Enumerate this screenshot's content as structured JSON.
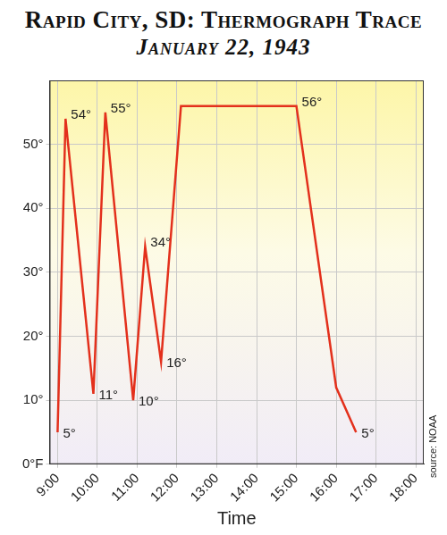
{
  "chart_data": {
    "type": "line",
    "title": "Rapid City, SD: Thermograph Trace",
    "subtitle": "January 22, 1943",
    "x_label": "Time",
    "source": "source: NOAA",
    "x": [
      9.0,
      9.2,
      9.9,
      10.2,
      10.9,
      11.2,
      11.6,
      12.1,
      15.0,
      16.0,
      16.5
    ],
    "values": [
      5,
      54,
      11,
      55,
      10,
      34,
      16,
      56,
      56,
      12,
      5
    ],
    "value_labels": [
      "5°",
      "54°",
      "11°",
      "55°",
      "10°",
      "34°",
      "16°",
      null,
      "56°",
      null,
      "5°"
    ],
    "data_labels": true,
    "color": "#e3301c",
    "xlim": [
      8.8,
      18.2
    ],
    "xticks": [
      {
        "value": 9,
        "label": "9:00"
      },
      {
        "value": 10,
        "label": "10:00"
      },
      {
        "value": 11,
        "label": "11:00"
      },
      {
        "value": 12,
        "label": "12:00"
      },
      {
        "value": 13,
        "label": "13:00"
      },
      {
        "value": 14,
        "label": "14:00"
      },
      {
        "value": 15,
        "label": "15:00"
      },
      {
        "value": 16,
        "label": "16:00"
      },
      {
        "value": 17,
        "label": "17:00"
      },
      {
        "value": 18,
        "label": "18:00"
      }
    ],
    "ylim": [
      0,
      60
    ],
    "yticks": [
      {
        "value": 0,
        "label": "0°F"
      },
      {
        "value": 10,
        "label": "10°"
      },
      {
        "value": 20,
        "label": "20°"
      },
      {
        "value": 30,
        "label": "30°"
      },
      {
        "value": 40,
        "label": "40°"
      },
      {
        "value": 50,
        "label": "50°"
      }
    ],
    "grid": true
  }
}
